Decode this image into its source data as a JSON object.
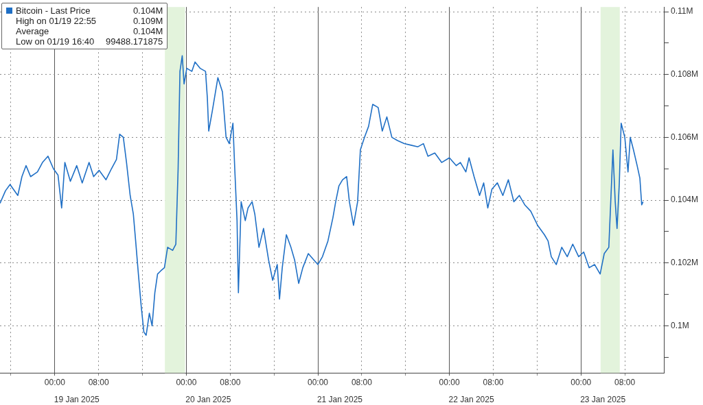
{
  "chart_data": {
    "type": "line",
    "xlim": [
      "2025-01-18T14:00",
      "2025-01-23T15:15"
    ],
    "xticks": [
      {
        "value": "2025-01-18T16:00",
        "label": null
      },
      {
        "value": "2025-01-19T00:00",
        "label": "00:00"
      },
      {
        "value": "2025-01-19T08:00",
        "label": "08:00"
      },
      {
        "value": "2025-01-19T16:00",
        "label": null
      },
      {
        "value": "2025-01-20T00:00",
        "label": "00:00"
      },
      {
        "value": "2025-01-20T08:00",
        "label": "08:00"
      },
      {
        "value": "2025-01-20T16:00",
        "label": null
      },
      {
        "value": "2025-01-21T00:00",
        "label": "00:00"
      },
      {
        "value": "2025-01-21T08:00",
        "label": "08:00"
      },
      {
        "value": "2025-01-21T16:00",
        "label": null
      },
      {
        "value": "2025-01-22T00:00",
        "label": "00:00"
      },
      {
        "value": "2025-01-22T08:00",
        "label": "08:00"
      },
      {
        "value": "2025-01-22T16:00",
        "label": null
      },
      {
        "value": "2025-01-23T00:00",
        "label": "00:00"
      },
      {
        "value": "2025-01-23T08:00",
        "label": "08:00"
      }
    ],
    "x2lim": [
      "2025-01-18T14:00",
      "2025-01-23T15:15"
    ],
    "x2ticks": [
      {
        "value": "2025-01-19T04:00",
        "label": "19 Jan 2025"
      },
      {
        "value": "2025-01-20T04:00",
        "label": "20 Jan 2025"
      },
      {
        "value": "2025-01-21T04:00",
        "label": "21 Jan 2025"
      },
      {
        "value": "2025-01-22T04:00",
        "label": "22 Jan 2025"
      },
      {
        "value": "2025-01-23T04:00",
        "label": "23 Jan 2025"
      }
    ],
    "ylim": [
      98500,
      110150
    ],
    "yticks": [
      {
        "value": 99000,
        "label": null
      },
      {
        "value": 100000,
        "label": "0.1M"
      },
      {
        "value": 101000,
        "label": null
      },
      {
        "value": 102000,
        "label": "0.102M"
      },
      {
        "value": 103000,
        "label": null
      },
      {
        "value": 104000,
        "label": "0.104M"
      },
      {
        "value": 105000,
        "label": null
      },
      {
        "value": 106000,
        "label": "0.106M"
      },
      {
        "value": 107000,
        "label": null
      },
      {
        "value": 108000,
        "label": "0.108M"
      },
      {
        "value": 109000,
        "label": null
      },
      {
        "value": 110000,
        "label": "0.11M"
      }
    ],
    "grid": true,
    "legend": "top left",
    "marker": "none",
    "line_style": "solid",
    "bands": [
      {
        "axis": "x",
        "from": "2025-01-19T20:05",
        "to": "2025-01-19T23:45",
        "color": "#e3f3dc"
      },
      {
        "axis": "x",
        "from": "2025-01-23T03:35",
        "to": "2025-01-23T07:05",
        "color": "#e3f3dc"
      }
    ],
    "annotations": [
      "0.104M",
      "High on 01/19 22:55",
      "0.109M",
      "Average",
      "0.104M",
      "Low on 01/19 16:40",
      "99488.171875"
    ],
    "series": [
      {
        "name": "Bitcoin - Last Price",
        "color": "#1f6fc5",
        "x": [
          "2025-01-18T14:00",
          "2025-01-18T15:00",
          "2025-01-18T15:50",
          "2025-01-18T17:15",
          "2025-01-18T18:00",
          "2025-01-18T18:45",
          "2025-01-18T19:35",
          "2025-01-18T20:50",
          "2025-01-18T21:45",
          "2025-01-18T22:45",
          "2025-01-18T23:45",
          "2025-01-19T00:35",
          "2025-01-19T01:15",
          "2025-01-19T01:50",
          "2025-01-19T02:50",
          "2025-01-19T04:00",
          "2025-01-19T05:00",
          "2025-01-19T06:15",
          "2025-01-19T07:05",
          "2025-01-19T08:05",
          "2025-01-19T09:20",
          "2025-01-19T10:20",
          "2025-01-19T11:15",
          "2025-01-19T11:50",
          "2025-01-19T12:30",
          "2025-01-19T13:05",
          "2025-01-19T13:45",
          "2025-01-19T14:20",
          "2025-01-19T14:45",
          "2025-01-19T15:15",
          "2025-01-19T15:45",
          "2025-01-19T16:15",
          "2025-01-19T16:40",
          "2025-01-19T17:15",
          "2025-01-19T17:45",
          "2025-01-19T18:15",
          "2025-01-19T18:45",
          "2025-01-19T19:20",
          "2025-01-19T20:00",
          "2025-01-19T20:35",
          "2025-01-19T21:30",
          "2025-01-19T22:05",
          "2025-01-19T22:30",
          "2025-01-19T22:50",
          "2025-01-19T23:15",
          "2025-01-19T23:35",
          "2025-01-20T00:05",
          "2025-01-20T01:00",
          "2025-01-20T01:35",
          "2025-01-20T02:30",
          "2025-01-20T03:30",
          "2025-01-20T03:50",
          "2025-01-20T04:05",
          "2025-01-20T04:45",
          "2025-01-20T05:45",
          "2025-01-20T06:35",
          "2025-01-20T07:15",
          "2025-01-20T07:50",
          "2025-01-20T08:30",
          "2025-01-20T08:50",
          "2025-01-20T09:15",
          "2025-01-20T09:30",
          "2025-01-20T10:00",
          "2025-01-20T10:45",
          "2025-01-20T11:15",
          "2025-01-20T12:00",
          "2025-01-20T12:30",
          "2025-01-20T13:15",
          "2025-01-20T14:05",
          "2025-01-20T15:00",
          "2025-01-20T15:45",
          "2025-01-20T16:35",
          "2025-01-20T17:00",
          "2025-01-20T17:30",
          "2025-01-20T18:15",
          "2025-01-20T19:05",
          "2025-01-20T19:45",
          "2025-01-20T20:30",
          "2025-01-20T21:15",
          "2025-01-20T22:15",
          "2025-01-20T23:15",
          "2025-01-21T00:00",
          "2025-01-21T00:50",
          "2025-01-21T01:50",
          "2025-01-21T02:45",
          "2025-01-21T03:15",
          "2025-01-21T03:50",
          "2025-01-21T04:30",
          "2025-01-21T05:15",
          "2025-01-21T05:45",
          "2025-01-21T06:30",
          "2025-01-21T07:15",
          "2025-01-21T07:45",
          "2025-01-21T08:30",
          "2025-01-21T09:15",
          "2025-01-21T10:00",
          "2025-01-21T11:00",
          "2025-01-21T11:45",
          "2025-01-21T12:35",
          "2025-01-21T13:30",
          "2025-01-21T14:30",
          "2025-01-21T15:45",
          "2025-01-21T17:00",
          "2025-01-21T18:15",
          "2025-01-21T19:15",
          "2025-01-21T20:05",
          "2025-01-21T21:20",
          "2025-01-21T22:35",
          "2025-01-22T00:00",
          "2025-01-22T01:15",
          "2025-01-22T02:00",
          "2025-01-22T03:00",
          "2025-01-22T03:35",
          "2025-01-22T04:30",
          "2025-01-22T05:30",
          "2025-01-22T06:15",
          "2025-01-22T07:00",
          "2025-01-22T07:45",
          "2025-01-22T08:45",
          "2025-01-22T09:45",
          "2025-01-22T10:45",
          "2025-01-22T11:45",
          "2025-01-22T12:45",
          "2025-01-22T13:45",
          "2025-01-22T14:50",
          "2025-01-22T16:05",
          "2025-01-22T17:20",
          "2025-01-22T18:00",
          "2025-01-22T18:35",
          "2025-01-22T19:30",
          "2025-01-22T20:30",
          "2025-01-22T21:30",
          "2025-01-22T22:30",
          "2025-01-22T23:35",
          "2025-01-23T00:30",
          "2025-01-23T01:30",
          "2025-01-23T02:30",
          "2025-01-23T03:30",
          "2025-01-23T04:15",
          "2025-01-23T05:05",
          "2025-01-23T05:50",
          "2025-01-23T06:15",
          "2025-01-23T06:35",
          "2025-01-23T07:00",
          "2025-01-23T07:20",
          "2025-01-23T08:00",
          "2025-01-23T08:35",
          "2025-01-23T09:00",
          "2025-01-23T09:35",
          "2025-01-23T10:15",
          "2025-01-23T10:45",
          "2025-01-23T11:05",
          "2025-01-23T11:20"
        ],
        "values": [
          103900,
          104300,
          104500,
          104150,
          104750,
          105100,
          104750,
          104900,
          105200,
          105400,
          105000,
          104800,
          103750,
          105200,
          104600,
          105100,
          104550,
          105200,
          104750,
          104950,
          104650,
          105000,
          105300,
          106100,
          106000,
          105200,
          104150,
          103550,
          102700,
          101650,
          100650,
          99800,
          99700,
          100400,
          100000,
          101050,
          101650,
          101750,
          101850,
          102500,
          102400,
          102600,
          105000,
          108100,
          108600,
          107700,
          108200,
          108100,
          108400,
          108200,
          108100,
          107250,
          106200,
          106850,
          107900,
          107450,
          106000,
          105800,
          106450,
          105000,
          103350,
          101050,
          103950,
          103350,
          103750,
          103950,
          103550,
          102500,
          103100,
          102100,
          101450,
          101950,
          100850,
          101850,
          102900,
          102500,
          102100,
          101350,
          101850,
          102300,
          102100,
          101950,
          102200,
          102700,
          103450,
          103950,
          104450,
          104650,
          104750,
          103950,
          103200,
          103950,
          105600,
          106000,
          106350,
          107050,
          106950,
          106200,
          106650,
          106000,
          105900,
          105800,
          105750,
          105700,
          105800,
          105400,
          105500,
          105200,
          105350,
          105100,
          105200,
          104900,
          105350,
          104750,
          104150,
          104550,
          103750,
          104350,
          104550,
          104150,
          104650,
          103950,
          104150,
          103850,
          103650,
          103200,
          102900,
          102700,
          102200,
          101950,
          102500,
          102200,
          102600,
          102200,
          102350,
          101850,
          101950,
          101650,
          102300,
          102500,
          105600,
          103950,
          103100,
          104550,
          106450,
          106000,
          104900,
          106000,
          105600,
          105100,
          104700,
          103850,
          103950
        ]
      }
    ]
  }
}
